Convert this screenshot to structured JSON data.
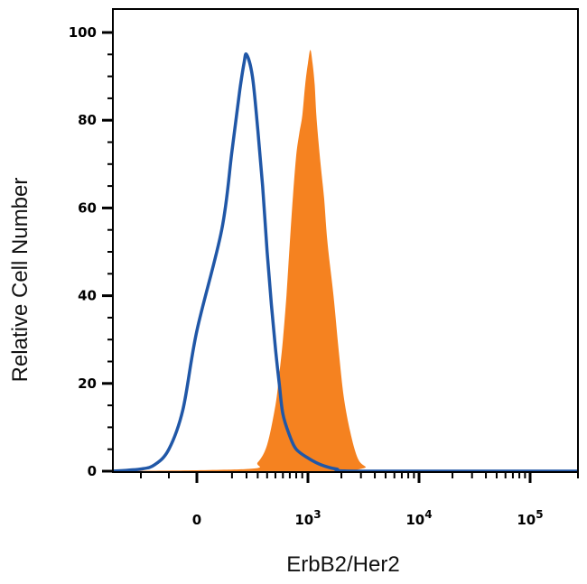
{
  "chart_data": {
    "type": "area",
    "title": "",
    "xlabel": "ErbB2/Her2",
    "ylabel": "Relative Cell Number",
    "x_scale": "biexponential",
    "xlim": [
      -300,
      200000
    ],
    "ylim": [
      0,
      100
    ],
    "grid": false,
    "legend": "none",
    "x_ticks": [
      {
        "label": "0",
        "base": "0",
        "exp": "",
        "value": 0
      },
      {
        "label": "10^3",
        "base": "10",
        "exp": "3",
        "value": 1000
      },
      {
        "label": "10^4",
        "base": "10",
        "exp": "4",
        "value": 10000
      },
      {
        "label": "10^5",
        "base": "10",
        "exp": "5",
        "value": 100000
      }
    ],
    "y_ticks": [
      0,
      20,
      40,
      60,
      80,
      100
    ],
    "series": [
      {
        "style": "filled",
        "color": "#f58220",
        "x": [
          -300,
          200,
          300,
          400,
          500,
          550,
          600,
          650,
          700,
          750,
          800,
          850,
          900,
          950,
          1000,
          1050,
          1100,
          1150,
          1200,
          1300,
          1400,
          1500,
          1700,
          1900,
          2100,
          2400,
          2800,
          3300,
          4000,
          200000
        ],
        "y": [
          0,
          0.5,
          2,
          6,
          15,
          22,
          30,
          40,
          52,
          63,
          72,
          77,
          81,
          88,
          93,
          96,
          93,
          88,
          80,
          70,
          62,
          52,
          40,
          27,
          17,
          9,
          3,
          1,
          0,
          0
        ]
      },
      {
        "style": "line",
        "color": "#2057a7",
        "x": [
          -300,
          -200,
          -150,
          -100,
          -50,
          0,
          50,
          100,
          150,
          180,
          200,
          250,
          300,
          350,
          400,
          450,
          500,
          550,
          600,
          700,
          800,
          1000,
          1300,
          1800,
          3000,
          200000
        ],
        "y": [
          0,
          0.5,
          1.5,
          5,
          14,
          32,
          55,
          73,
          87,
          93,
          95,
          90,
          78,
          65,
          50,
          38,
          28,
          20,
          13,
          8,
          5,
          3,
          1.5,
          0.5,
          0,
          0
        ]
      }
    ]
  }
}
